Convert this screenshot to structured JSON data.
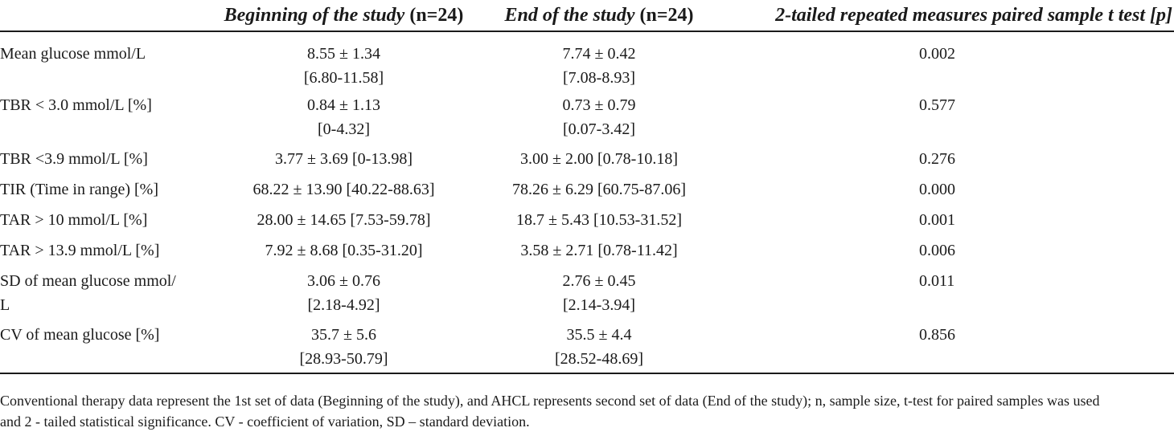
{
  "table": {
    "headers": [
      {
        "italic": "",
        "plain": ""
      },
      {
        "italic": "Beginning of the study",
        "plain": " (n=24)"
      },
      {
        "italic": "End of the study",
        "plain": " (n=24)"
      },
      {
        "italic": "2-tailed repeated measures paired sample t test [p]",
        "plain": ""
      }
    ],
    "rows": [
      {
        "label": [
          "Mean glucose mmol/L"
        ],
        "begin": [
          "8.55 ± 1.34",
          "[6.80-11.58]"
        ],
        "end": [
          "7.74 ± 0.42",
          "[7.08-8.93]"
        ],
        "p": "0.002"
      },
      {
        "label": [
          "TBR < 3.0 mmol/L [%]"
        ],
        "begin": [
          "0.84 ± 1.13",
          "[0-4.32]"
        ],
        "end": [
          "0.73 ± 0.79",
          "[0.07-3.42]"
        ],
        "p": "0.577"
      },
      {
        "label": [
          "TBR <3.9 mmol/L [%]"
        ],
        "begin": [
          "3.77 ± 3.69 [0-13.98]"
        ],
        "end": [
          "3.00 ± 2.00 [0.78-10.18]"
        ],
        "p": "0.276"
      },
      {
        "label": [
          "TIR (Time in range) [%]"
        ],
        "begin": [
          "68.22 ± 13.90 [40.22-88.63]"
        ],
        "end": [
          "78.26 ± 6.29 [60.75-87.06]"
        ],
        "p": "0.000"
      },
      {
        "label": [
          "TAR > 10 mmol/L [%]"
        ],
        "begin": [
          "28.00 ± 14.65 [7.53-59.78]"
        ],
        "end": [
          "18.7 ± 5.43 [10.53-31.52]"
        ],
        "p": "0.001"
      },
      {
        "label": [
          "TAR > 13.9 mmol/L [%]"
        ],
        "begin": [
          "7.92 ± 8.68 [0.35-31.20]"
        ],
        "end": [
          "3.58 ± 2.71 [0.78-11.42]"
        ],
        "p": "0.006"
      },
      {
        "label": [
          "SD of mean glucose mmol/",
          "L"
        ],
        "begin": [
          "3.06 ± 0.76",
          "[2.18-4.92]"
        ],
        "end": [
          "2.76 ± 0.45",
          "[2.14-3.94]"
        ],
        "p": "0.011"
      },
      {
        "label": [
          "CV of mean glucose [%]"
        ],
        "begin": [
          "35.7 ± 5.6",
          "[28.93-50.79]"
        ],
        "end": [
          "35.5 ± 4.4",
          "[28.52-48.69]"
        ],
        "p": "0.856"
      }
    ]
  },
  "footnote": {
    "line1": "Conventional therapy data represent the 1st set of data (Beginning of the study), and AHCL represents second set of data (End of the study); n, sample size, t-test for paired samples was used",
    "line2": "and 2 - tailed statistical significance. CV - coefficient of variation, SD – standard deviation."
  }
}
